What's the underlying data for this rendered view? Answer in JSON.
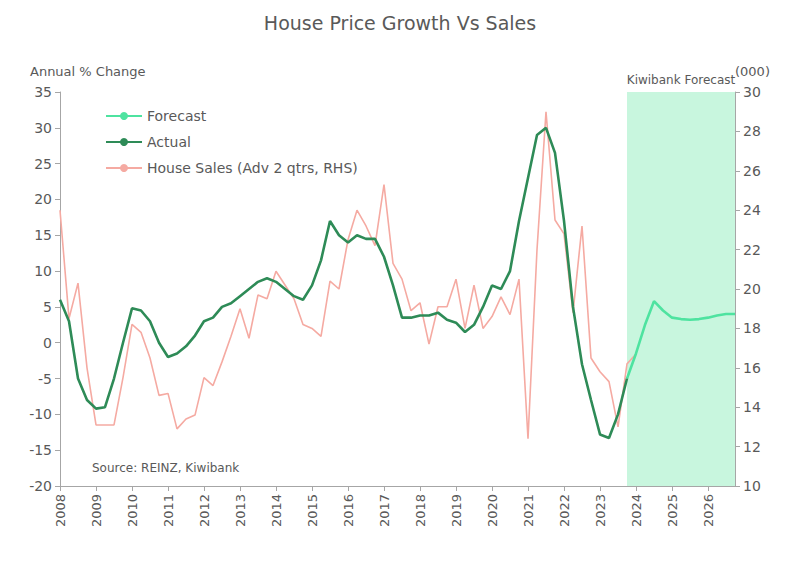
{
  "chart_data": {
    "type": "line",
    "title": "House Price Growth Vs Sales",
    "y_label": "Annual % Change",
    "y2_label": "(000)",
    "annotation": "Kiwibank Forecast",
    "source": "Source: REINZ, Kiwibank",
    "categories": [
      "2008",
      null,
      null,
      null,
      "2009",
      null,
      null,
      null,
      "2010",
      null,
      null,
      null,
      "2011",
      null,
      null,
      null,
      "2012",
      null,
      null,
      null,
      "2013",
      null,
      null,
      null,
      "2014",
      null,
      null,
      null,
      "2015",
      null,
      null,
      null,
      "2016",
      null,
      null,
      null,
      "2017",
      null,
      null,
      null,
      "2018",
      null,
      null,
      null,
      "2019",
      null,
      null,
      null,
      "2020",
      null,
      null,
      null,
      "2021",
      null,
      null,
      null,
      "2022",
      null,
      null,
      null,
      "2023",
      null,
      null,
      null,
      "2024",
      null,
      null,
      null,
      "2025",
      null,
      null,
      null,
      "2026",
      null,
      null,
      null
    ],
    "series": [
      {
        "name": "Forecast",
        "color": "#4ee3a0",
        "values": [
          null,
          null,
          null,
          null,
          null,
          null,
          null,
          null,
          null,
          null,
          null,
          null,
          null,
          null,
          null,
          null,
          null,
          null,
          null,
          null,
          null,
          null,
          null,
          null,
          null,
          null,
          null,
          null,
          null,
          null,
          null,
          null,
          null,
          null,
          null,
          null,
          null,
          null,
          null,
          null,
          null,
          null,
          null,
          null,
          null,
          null,
          null,
          null,
          null,
          null,
          null,
          null,
          null,
          null,
          null,
          null,
          null,
          null,
          null,
          null,
          null,
          null,
          null,
          -5,
          -1.5,
          2.5,
          5.8,
          4.5,
          3.5,
          3.3,
          3.2,
          3.3,
          3.5,
          3.8,
          4,
          4
        ]
      },
      {
        "name": "Actual",
        "color": "#2e8b57",
        "values": [
          6,
          3,
          -5,
          -8,
          -9.2,
          -9,
          -5,
          0,
          4.8,
          4.5,
          3,
          0,
          -2,
          -1.5,
          -0.5,
          1,
          3,
          3.5,
          5,
          5.5,
          6.5,
          7.5,
          8.5,
          9,
          8.5,
          7.5,
          6.5,
          6,
          8,
          11.5,
          17,
          15,
          14,
          15,
          14.5,
          14.5,
          12,
          8,
          3.5,
          3.5,
          3.8,
          3.8,
          4.2,
          3.2,
          2.8,
          1.5,
          2.5,
          5,
          8,
          7.5,
          10,
          17,
          23,
          29,
          30,
          26.5,
          17,
          5,
          -3,
          -8,
          -12.8,
          -13.3,
          -10,
          -5,
          null,
          null,
          null,
          null,
          null,
          null,
          null,
          null,
          null,
          null,
          null,
          null
        ]
      },
      {
        "name": "House Sales (Adv 2 qtrs, RHS)",
        "color": "#f5aaa2",
        "axis": "y2",
        "values": [
          24,
          18.5,
          20.3,
          16,
          13.1,
          13.1,
          13.1,
          15.5,
          18.2,
          17.8,
          16.5,
          14.6,
          14.7,
          12.9,
          13.4,
          13.6,
          15.5,
          15.1,
          16.3,
          17.6,
          19,
          17.5,
          19.7,
          19.5,
          20.9,
          20.2,
          19.5,
          18.2,
          18,
          17.6,
          20.4,
          20,
          22.5,
          24,
          23.2,
          22.2,
          25.3,
          21.3,
          20.5,
          18.9,
          19.3,
          17.2,
          19.1,
          19.1,
          20.5,
          18,
          20.2,
          18,
          18.6,
          19.6,
          18.7,
          20.5,
          12.4,
          22,
          29,
          23.5,
          22.8,
          18.8,
          23.2,
          16.5,
          15.8,
          15.3,
          13,
          16.2,
          16.7,
          null,
          null,
          null,
          null,
          null,
          null,
          null,
          null,
          null,
          null,
          null
        ]
      }
    ],
    "ylim": [
      -20,
      35
    ],
    "yticks": [
      -20,
      -15,
      -10,
      -5,
      0,
      5,
      10,
      15,
      20,
      25,
      30,
      35
    ],
    "y2lim": [
      10,
      30
    ],
    "y2ticks": [
      10,
      12,
      14,
      16,
      18,
      20,
      22,
      24,
      26,
      28,
      30
    ],
    "grid": false,
    "legend": "upper left"
  }
}
